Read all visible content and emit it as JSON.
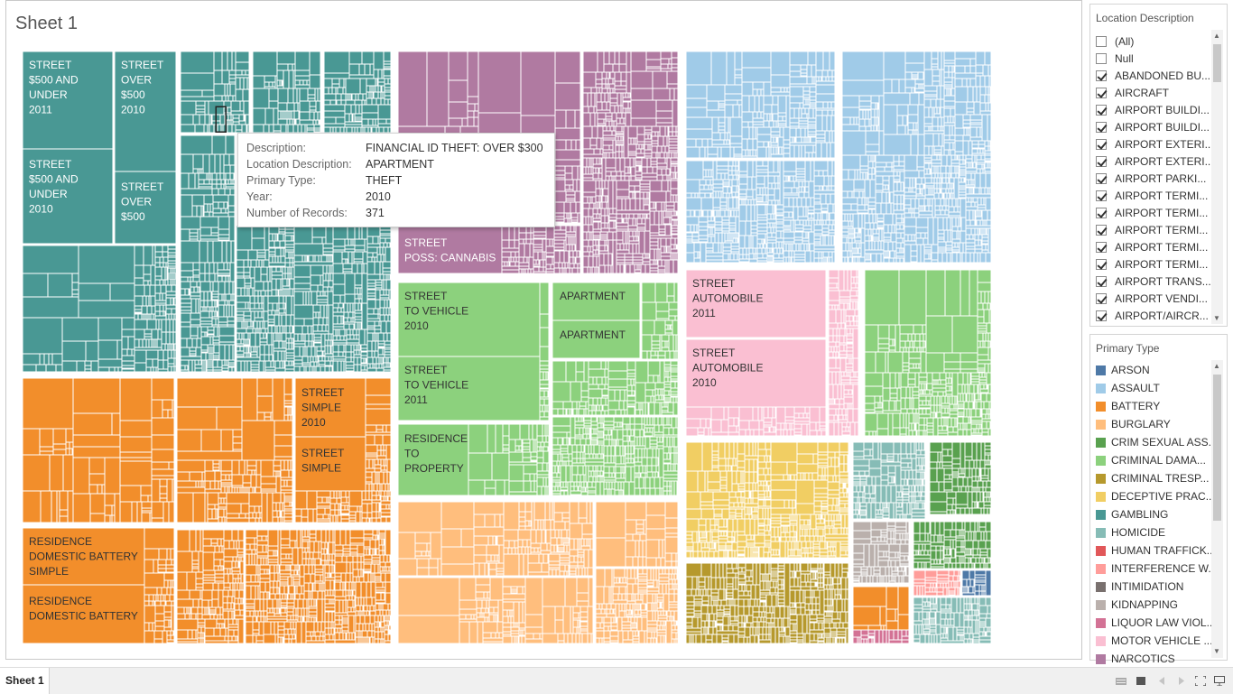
{
  "sheet_title": "Sheet 1",
  "treemap_labels": [
    {
      "lines": [
        "STREET",
        "$500 AND",
        "UNDER",
        "2011"
      ]
    },
    {
      "lines": [
        "STREET",
        "OVER",
        "$500",
        "2010"
      ]
    },
    {
      "lines": [
        "STREET",
        "$500 AND",
        "UNDER",
        "2010"
      ]
    },
    {
      "lines": [
        "STREET",
        "OVER",
        "$500"
      ]
    },
    {
      "lines": [
        "STREET",
        "POSS: CANNABIS"
      ]
    },
    {
      "lines": [
        "STREET",
        "TO VEHICLE",
        "2010"
      ]
    },
    {
      "lines": [
        "STREET",
        "TO VEHICLE",
        "2011"
      ]
    },
    {
      "lines": [
        "APARTMENT"
      ]
    },
    {
      "lines": [
        "APARTMENT"
      ]
    },
    {
      "lines": [
        "RESIDENCE",
        "TO",
        "PROPERTY"
      ]
    },
    {
      "lines": [
        "STREET",
        "AUTOMOBILE",
        "2011"
      ]
    },
    {
      "lines": [
        "STREET",
        "AUTOMOBILE",
        "2010"
      ]
    },
    {
      "lines": [
        "STREET",
        "SIMPLE",
        "2010"
      ]
    },
    {
      "lines": [
        "STREET",
        "SIMPLE"
      ]
    },
    {
      "lines": [
        "RESIDENCE",
        "DOMESTIC BATTERY",
        "SIMPLE"
      ]
    },
    {
      "lines": [
        "RESIDENCE",
        "DOMESTIC BATTERY"
      ]
    }
  ],
  "tooltip": {
    "rows": [
      {
        "key": "Description:",
        "value": "FINANCIAL ID THEFT: OVER $300"
      },
      {
        "key": "Location Description:",
        "value": "APARTMENT"
      },
      {
        "key": "Primary Type:",
        "value": "THEFT"
      },
      {
        "key": "Year:",
        "value": "2010"
      },
      {
        "key": "Number of Records:",
        "value": "371"
      }
    ]
  },
  "location_filter": {
    "title": "Location Description",
    "items": [
      {
        "label": "(All)",
        "checked": false
      },
      {
        "label": "Null",
        "checked": false
      },
      {
        "label": "ABANDONED BU...",
        "checked": true
      },
      {
        "label": "AIRCRAFT",
        "checked": true
      },
      {
        "label": "AIRPORT BUILDI...",
        "checked": true
      },
      {
        "label": "AIRPORT BUILDI...",
        "checked": true
      },
      {
        "label": "AIRPORT EXTERI...",
        "checked": true
      },
      {
        "label": "AIRPORT EXTERI...",
        "checked": true
      },
      {
        "label": "AIRPORT PARKI...",
        "checked": true
      },
      {
        "label": "AIRPORT TERMI...",
        "checked": true
      },
      {
        "label": "AIRPORT TERMI...",
        "checked": true
      },
      {
        "label": "AIRPORT TERMI...",
        "checked": true
      },
      {
        "label": "AIRPORT TERMI...",
        "checked": true
      },
      {
        "label": "AIRPORT TERMI...",
        "checked": true
      },
      {
        "label": "AIRPORT TRANS...",
        "checked": true
      },
      {
        "label": "AIRPORT VENDI...",
        "checked": true
      },
      {
        "label": "AIRPORT/AIRCR...",
        "checked": true
      }
    ]
  },
  "primary_type_legend": {
    "title": "Primary Type",
    "items": [
      {
        "label": "ARSON",
        "color": "#4e79a7"
      },
      {
        "label": "ASSAULT",
        "color": "#a0cbe8"
      },
      {
        "label": "BATTERY",
        "color": "#f28e2b"
      },
      {
        "label": "BURGLARY",
        "color": "#ffbe7d"
      },
      {
        "label": "CRIM SEXUAL ASS...",
        "color": "#59a14f"
      },
      {
        "label": "CRIMINAL DAMA...",
        "color": "#8cd17d"
      },
      {
        "label": "CRIMINAL TRESP...",
        "color": "#b6992d"
      },
      {
        "label": "DECEPTIVE PRAC...",
        "color": "#f1ce63"
      },
      {
        "label": "GAMBLING",
        "color": "#499894"
      },
      {
        "label": "HOMICIDE",
        "color": "#86bcb6"
      },
      {
        "label": "HUMAN TRAFFICK...",
        "color": "#e15759"
      },
      {
        "label": "INTERFERENCE W...",
        "color": "#ff9d9a"
      },
      {
        "label": "INTIMIDATION",
        "color": "#79706e"
      },
      {
        "label": "KIDNAPPING",
        "color": "#bab0ac"
      },
      {
        "label": "LIQUOR LAW VIOL...",
        "color": "#d37295"
      },
      {
        "label": "MOTOR VEHICLE ...",
        "color": "#fabfd2"
      },
      {
        "label": "NARCOTICS",
        "color": "#b07aa1"
      }
    ]
  },
  "bottom_tab": {
    "label": "Sheet 1"
  },
  "colors": {
    "theft": "#499894",
    "battery": "#f28e2b",
    "narcotics": "#b07aa1",
    "criminal_damage": "#8cd17d",
    "burglary": "#ffbe7d",
    "assault": "#a0cbe8",
    "motor_vehicle_theft": "#fabfd2",
    "deceptive_practice": "#f1ce63",
    "criminal_trespass": "#b6992d",
    "homicide": "#86bcb6",
    "crim_sexual_assault": "#59a14f",
    "kidnapping": "#bab0ac",
    "interference": "#ff9d9a",
    "liquor_law": "#d37295",
    "arson": "#4e79a7"
  }
}
